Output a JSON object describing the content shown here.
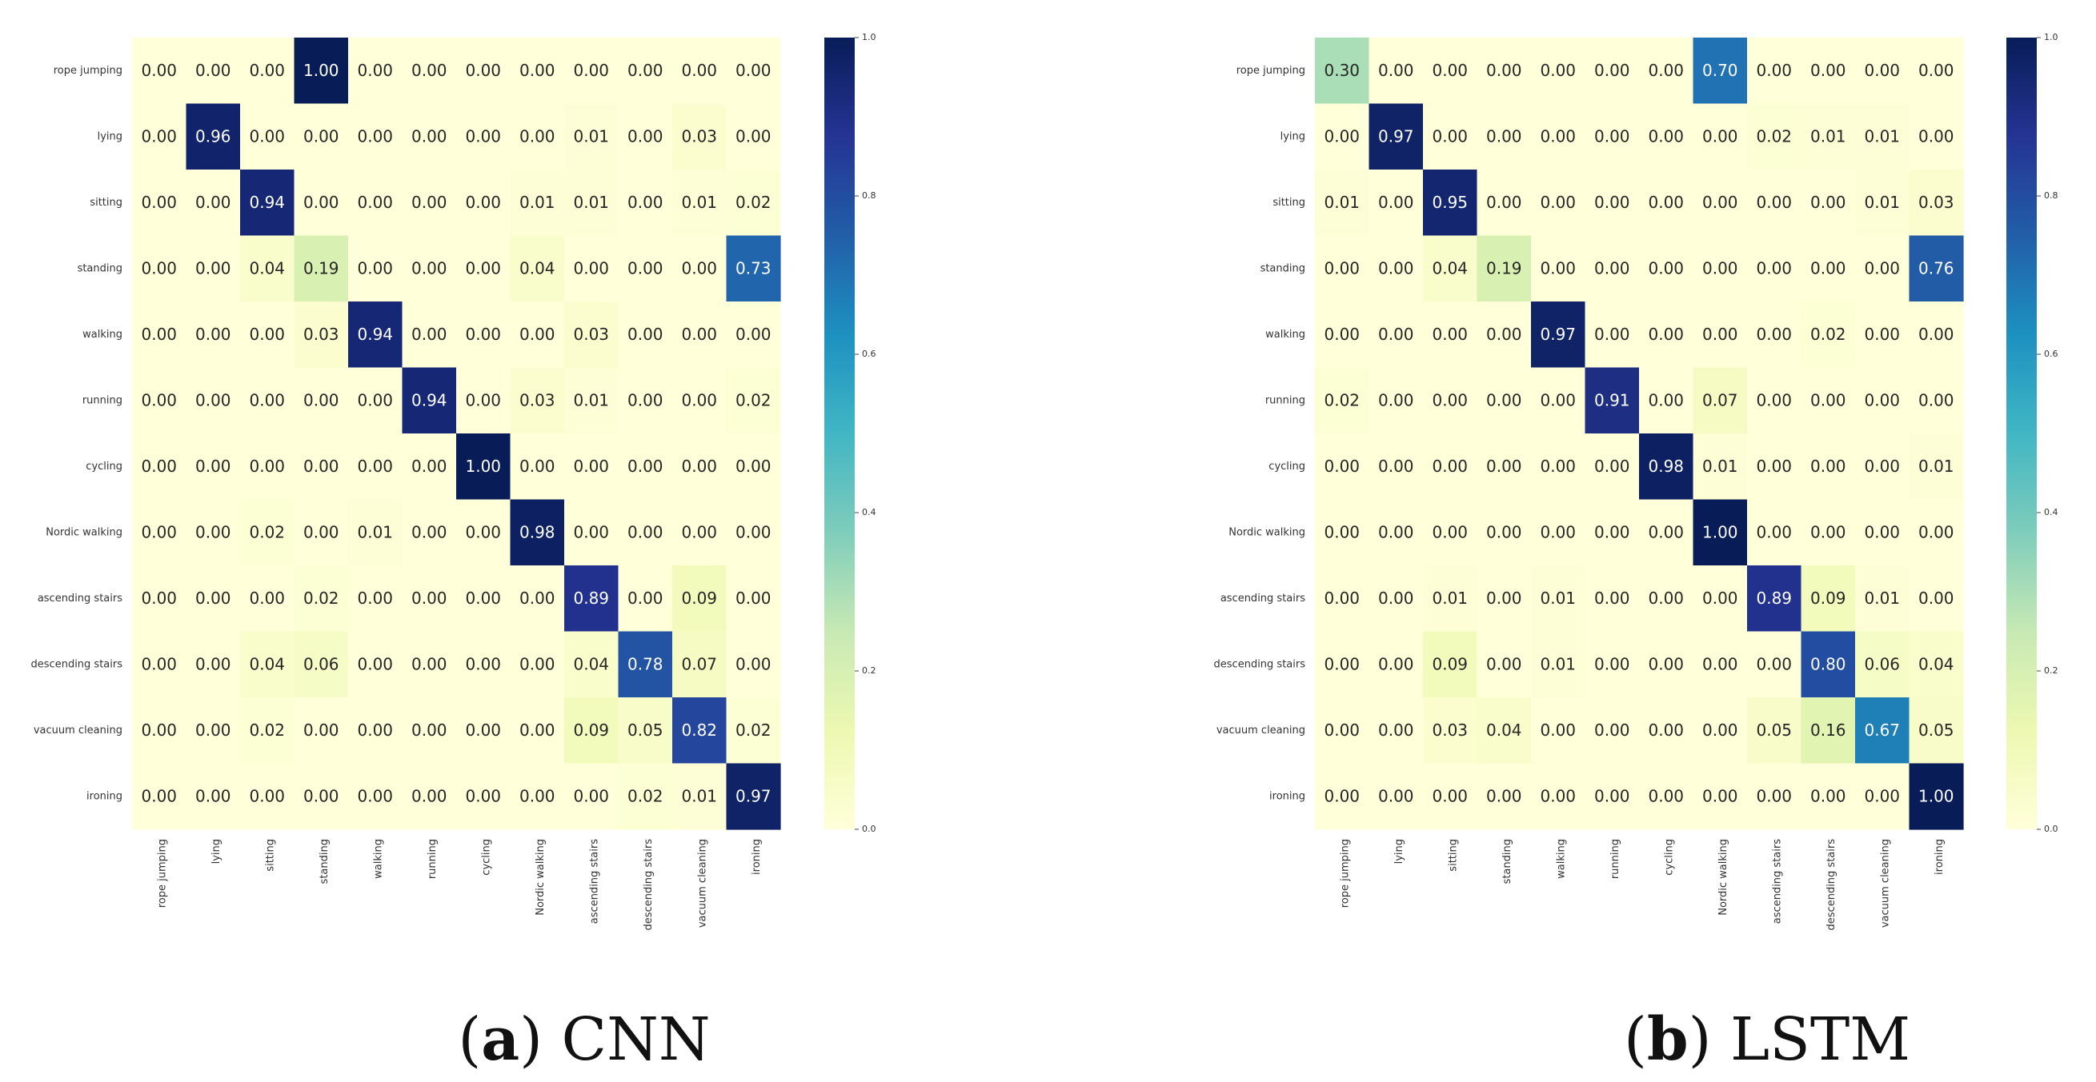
{
  "chart_data": [
    {
      "type": "heatmap",
      "caption_letter": "a",
      "caption_text": "CNN",
      "rows": [
        "rope jumping",
        "lying",
        "sitting",
        "standing",
        "walking",
        "running",
        "cycling",
        "Nordic walking",
        "ascending stairs",
        "descending stairs",
        "vacuum cleaning",
        "ironing"
      ],
      "columns": [
        "rope jumping",
        "lying",
        "sitting",
        "standing",
        "walking",
        "running",
        "cycling",
        "Nordic walking",
        "ascending stairs",
        "descending stairs",
        "vacuum cleaning",
        "ironing"
      ],
      "values": [
        [
          0.0,
          0.0,
          0.0,
          1.0,
          0.0,
          0.0,
          0.0,
          0.0,
          0.0,
          0.0,
          0.0,
          0.0
        ],
        [
          0.0,
          0.96,
          0.0,
          0.0,
          0.0,
          0.0,
          0.0,
          0.0,
          0.01,
          0.0,
          0.03,
          0.0
        ],
        [
          0.0,
          0.0,
          0.94,
          0.0,
          0.0,
          0.0,
          0.0,
          0.01,
          0.01,
          0.0,
          0.01,
          0.02
        ],
        [
          0.0,
          0.0,
          0.04,
          0.19,
          0.0,
          0.0,
          0.0,
          0.04,
          0.0,
          0.0,
          0.0,
          0.73
        ],
        [
          0.0,
          0.0,
          0.0,
          0.03,
          0.94,
          0.0,
          0.0,
          0.0,
          0.03,
          0.0,
          0.0,
          0.0
        ],
        [
          0.0,
          0.0,
          0.0,
          0.0,
          0.0,
          0.94,
          0.0,
          0.03,
          0.01,
          0.0,
          0.0,
          0.02
        ],
        [
          0.0,
          0.0,
          0.0,
          0.0,
          0.0,
          0.0,
          1.0,
          0.0,
          0.0,
          0.0,
          0.0,
          0.0
        ],
        [
          0.0,
          0.0,
          0.02,
          0.0,
          0.01,
          0.0,
          0.0,
          0.98,
          0.0,
          0.0,
          0.0,
          0.0
        ],
        [
          0.0,
          0.0,
          0.0,
          0.02,
          0.0,
          0.0,
          0.0,
          0.0,
          0.89,
          0.0,
          0.09,
          0.0
        ],
        [
          0.0,
          0.0,
          0.04,
          0.06,
          0.0,
          0.0,
          0.0,
          0.0,
          0.04,
          0.78,
          0.07,
          0.0
        ],
        [
          0.0,
          0.0,
          0.02,
          0.0,
          0.0,
          0.0,
          0.0,
          0.0,
          0.09,
          0.05,
          0.82,
          0.02
        ],
        [
          0.0,
          0.0,
          0.0,
          0.0,
          0.0,
          0.0,
          0.0,
          0.0,
          0.0,
          0.02,
          0.01,
          0.97
        ]
      ],
      "colorbar": {
        "range": [
          0.0,
          1.0
        ],
        "ticks": [
          "0.0",
          "0.2",
          "0.4",
          "0.6",
          "0.8",
          "1.0"
        ],
        "colormap": "YlGnBu"
      }
    },
    {
      "type": "heatmap",
      "caption_letter": "b",
      "caption_text": "LSTM",
      "rows": [
        "rope jumping",
        "lying",
        "sitting",
        "standing",
        "walking",
        "running",
        "cycling",
        "Nordic walking",
        "ascending stairs",
        "descending stairs",
        "vacuum cleaning",
        "ironing"
      ],
      "columns": [
        "rope jumping",
        "lying",
        "sitting",
        "standing",
        "walking",
        "running",
        "cycling",
        "Nordic walking",
        "ascending stairs",
        "descending stairs",
        "vacuum cleaning",
        "ironing"
      ],
      "values": [
        [
          0.3,
          0.0,
          0.0,
          0.0,
          0.0,
          0.0,
          0.0,
          0.7,
          0.0,
          0.0,
          0.0,
          0.0
        ],
        [
          0.0,
          0.97,
          0.0,
          0.0,
          0.0,
          0.0,
          0.0,
          0.0,
          0.02,
          0.01,
          0.01,
          0.0
        ],
        [
          0.01,
          0.0,
          0.95,
          0.0,
          0.0,
          0.0,
          0.0,
          0.0,
          0.0,
          0.0,
          0.01,
          0.03
        ],
        [
          0.0,
          0.0,
          0.04,
          0.19,
          0.0,
          0.0,
          0.0,
          0.0,
          0.0,
          0.0,
          0.0,
          0.76
        ],
        [
          0.0,
          0.0,
          0.0,
          0.0,
          0.97,
          0.0,
          0.0,
          0.0,
          0.0,
          0.02,
          0.0,
          0.0
        ],
        [
          0.02,
          0.0,
          0.0,
          0.0,
          0.0,
          0.91,
          0.0,
          0.07,
          0.0,
          0.0,
          0.0,
          0.0
        ],
        [
          0.0,
          0.0,
          0.0,
          0.0,
          0.0,
          0.0,
          0.98,
          0.01,
          0.0,
          0.0,
          0.0,
          0.01
        ],
        [
          0.0,
          0.0,
          0.0,
          0.0,
          0.0,
          0.0,
          0.0,
          1.0,
          0.0,
          0.0,
          0.0,
          0.0
        ],
        [
          0.0,
          0.0,
          0.01,
          0.0,
          0.01,
          0.0,
          0.0,
          0.0,
          0.89,
          0.09,
          0.01,
          0.0
        ],
        [
          0.0,
          0.0,
          0.09,
          0.0,
          0.01,
          0.0,
          0.0,
          0.0,
          0.0,
          0.8,
          0.06,
          0.04
        ],
        [
          0.0,
          0.0,
          0.03,
          0.04,
          0.0,
          0.0,
          0.0,
          0.0,
          0.05,
          0.16,
          0.67,
          0.05
        ],
        [
          0.0,
          0.0,
          0.0,
          0.0,
          0.0,
          0.0,
          0.0,
          0.0,
          0.0,
          0.0,
          0.0,
          1.0
        ]
      ],
      "colorbar": {
        "range": [
          0.0,
          1.0
        ],
        "ticks": [
          "0.0",
          "0.2",
          "0.4",
          "0.6",
          "0.8",
          "1.0"
        ],
        "colormap": "YlGnBu"
      }
    }
  ]
}
